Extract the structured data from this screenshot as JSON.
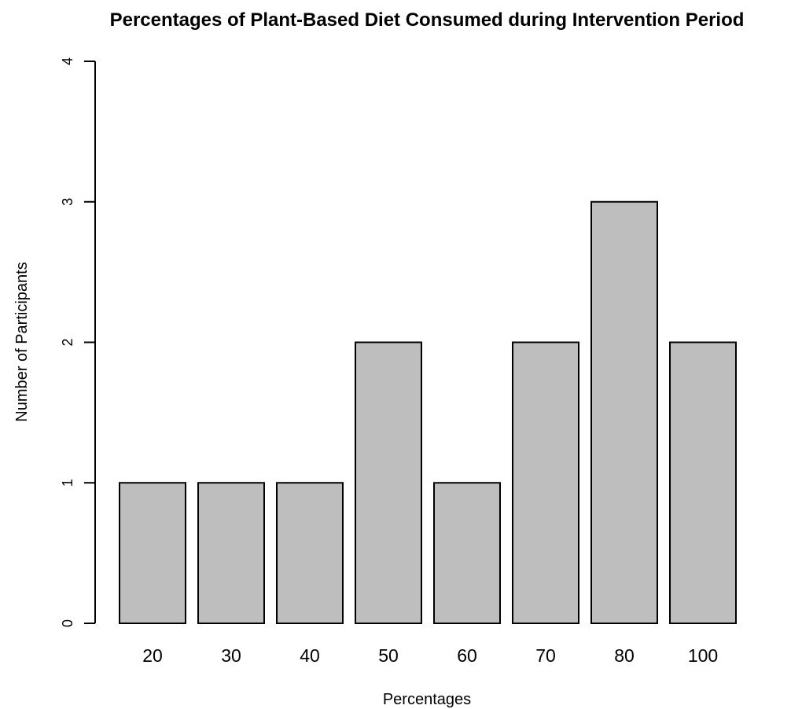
{
  "chart_data": {
    "type": "bar",
    "title": "Percentages of Plant-Based Diet Consumed during Intervention Period",
    "xlabel": "Percentages",
    "ylabel": "Number of Participants",
    "categories": [
      "20",
      "30",
      "40",
      "50",
      "60",
      "70",
      "80",
      "100"
    ],
    "values": [
      1,
      1,
      1,
      2,
      1,
      2,
      3,
      2
    ],
    "ylim": [
      0,
      4
    ],
    "yticks": [
      "0",
      "1",
      "2",
      "3",
      "4"
    ],
    "grid": false,
    "bar_color": "#bebebe",
    "bar_edge_color": "#000000"
  }
}
